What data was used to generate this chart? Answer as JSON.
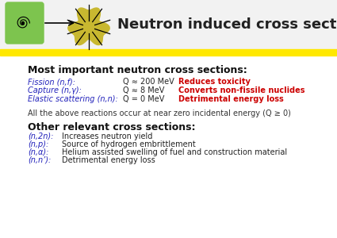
{
  "title": "Neutron induced cross sections",
  "title_fontsize": 13,
  "title_color": "#222222",
  "yellow_bar_color": "#FFE800",
  "bg_color": "#FFFFFF",
  "header_bg_color": "#F2F2F2",
  "section1_header": "Most important neutron cross sections:",
  "section1_header_fontsize": 9,
  "table_rows": [
    {
      "label": "Fission (n,f):",
      "q_value": "Q ≈ 200 MeV",
      "effect": "Reduces toxicity",
      "effect_color": "#CC0000"
    },
    {
      "label": "Capture (n,γ):",
      "q_value": "Q ≈ 8 MeV",
      "effect": "Converts non-fissile nuclides",
      "effect_color": "#CC0000"
    },
    {
      "label": "Elastic scattering (n,n):",
      "q_value": "Q = 0 MeV",
      "effect": "Detrimental energy loss",
      "effect_color": "#CC0000"
    }
  ],
  "label_color": "#2222BB",
  "qvalue_color": "#222222",
  "note_text": "All the above reactions occur at near zero incidental energy (Q ≥ 0)",
  "note_fontsize": 7,
  "section2_header": "Other relevant cross sections:",
  "section2_header_fontsize": 9,
  "section2_rows": [
    {
      "label": "(n,2n):",
      "desc": "Increases neutron yield"
    },
    {
      "label": "(n,p):",
      "desc": "Source of hydrogen embrittlement"
    },
    {
      "label": "(n,α):",
      "desc": "Helium assisted swelling of fuel and construction material"
    },
    {
      "label": "(n,n’):",
      "desc": "Detrimental energy loss"
    }
  ],
  "section2_label_color": "#2222BB",
  "section2_desc_color": "#222222",
  "table_fontsize": 7,
  "section2_fontsize": 7,
  "snail_color": "#7DC44E",
  "explosion_color": "#C8B830"
}
